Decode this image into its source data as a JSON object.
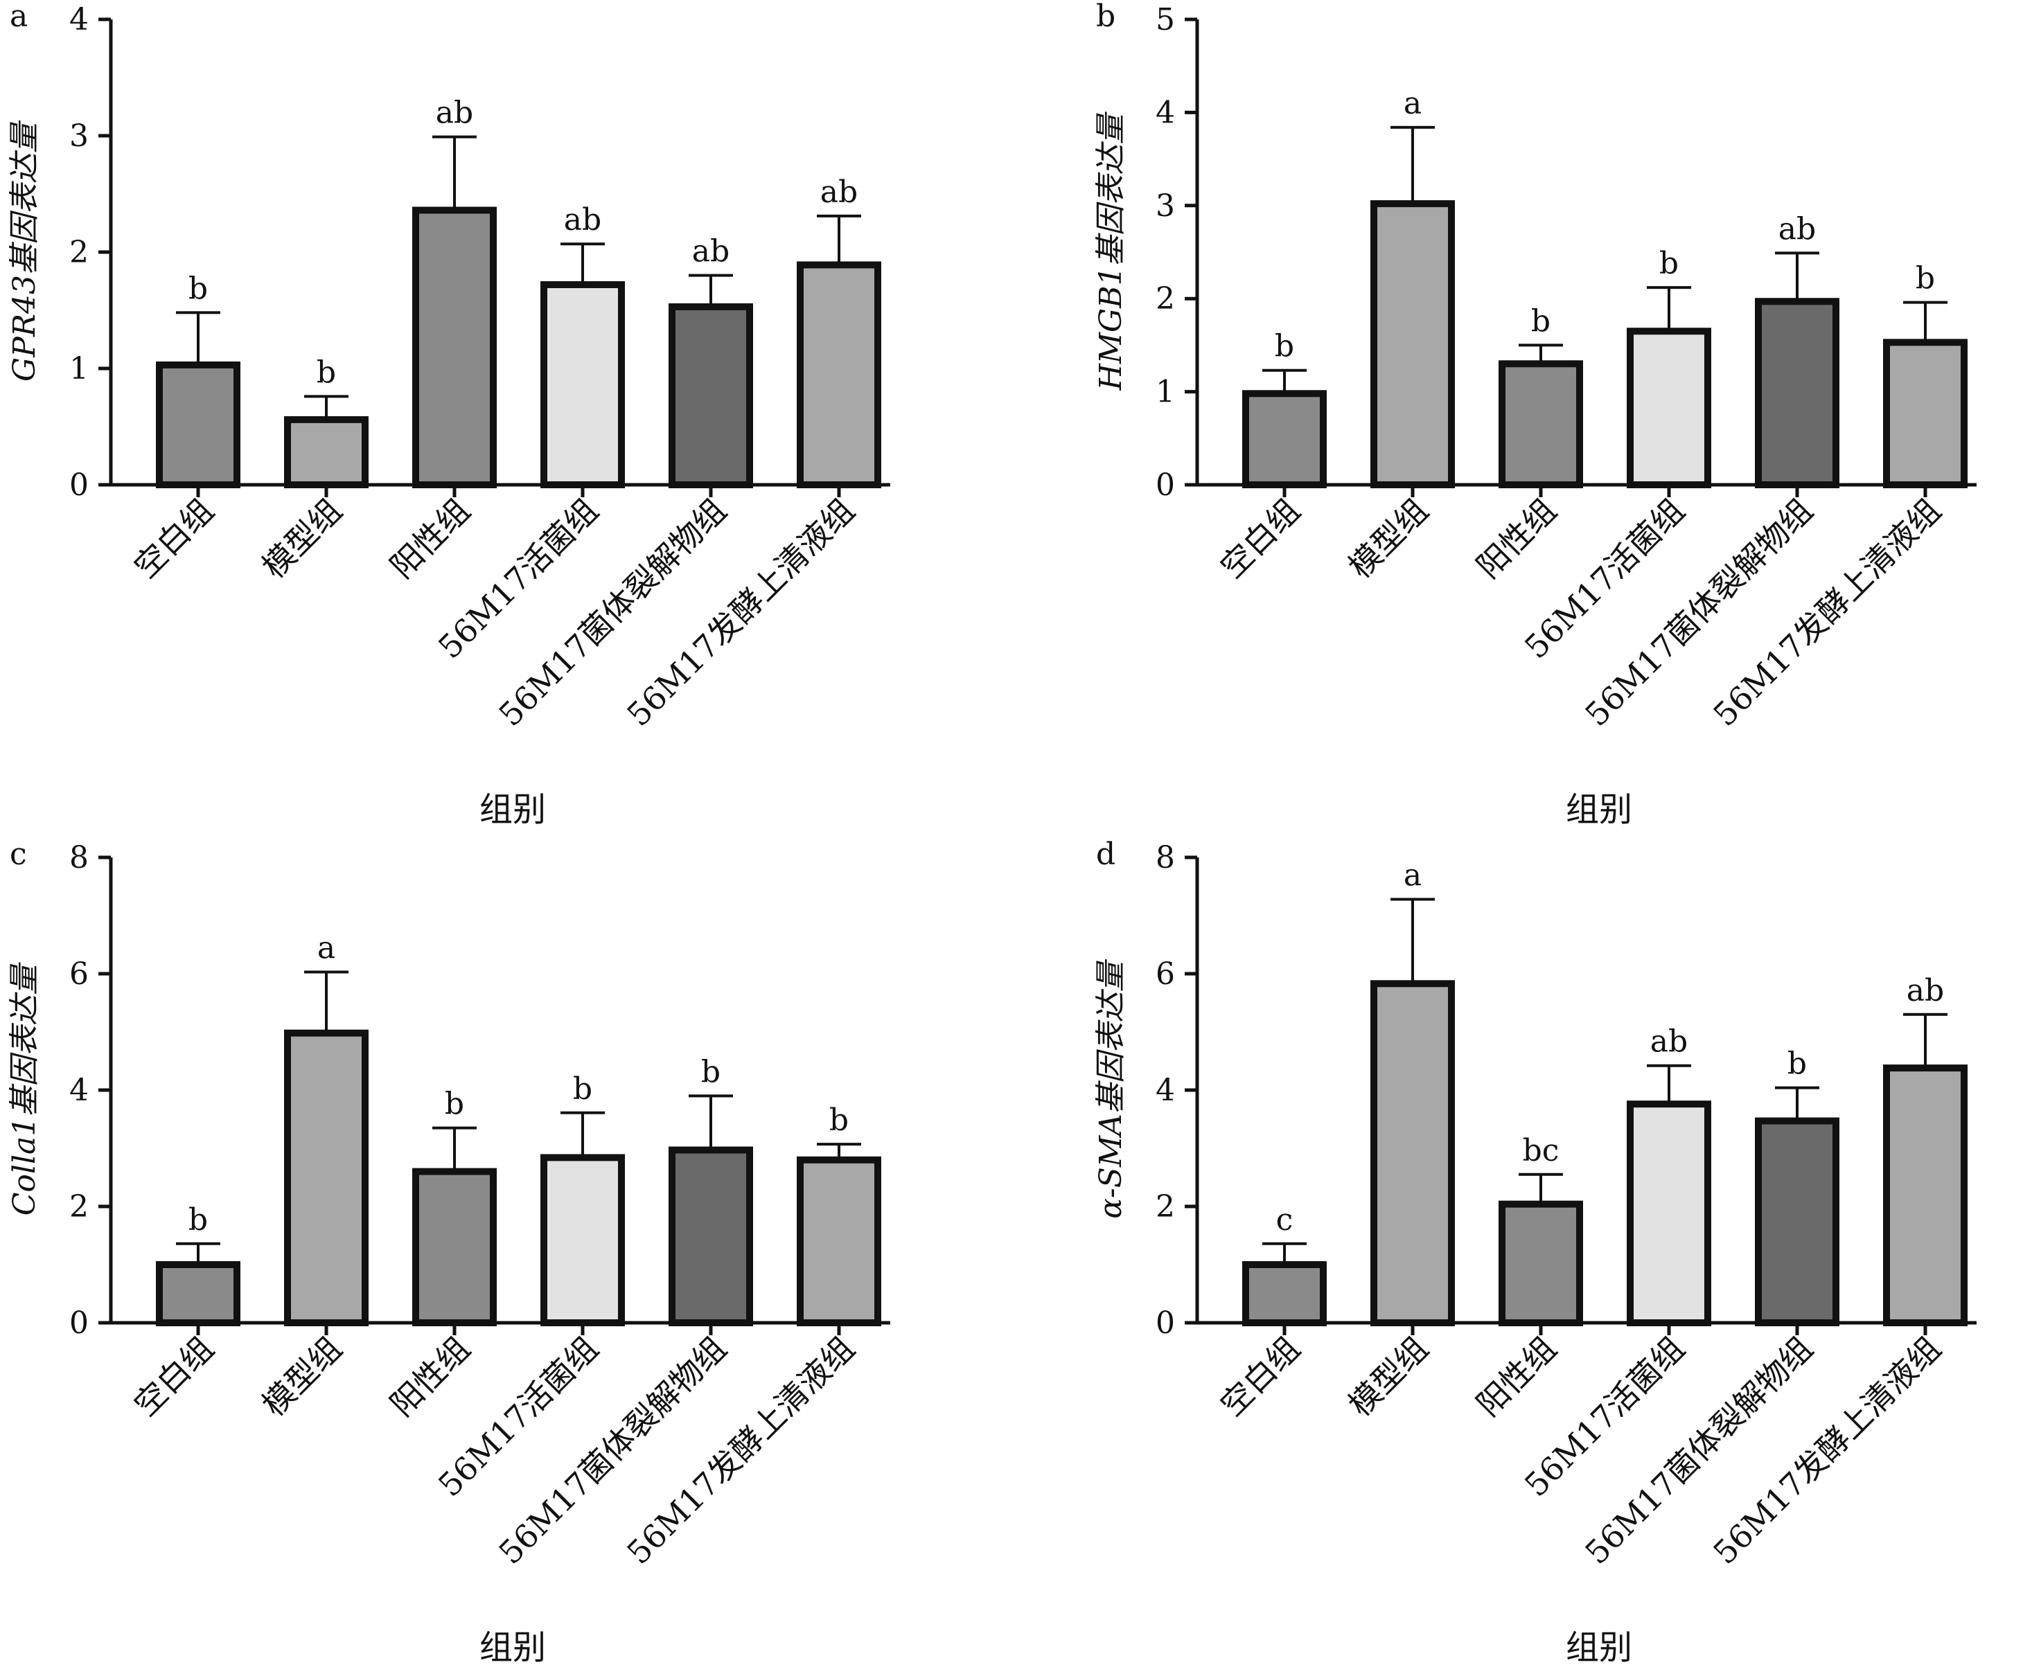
{
  "chart_data": [
    {
      "panel": "a",
      "type": "bar",
      "ylabel": "GPR43基因表达量",
      "xlabel": "组别",
      "ylim": [
        0,
        4
      ],
      "yticks": [
        0,
        1,
        2,
        3,
        4
      ],
      "categories": [
        "空白组",
        "模型组",
        "阳性组",
        "56M17活菌组",
        "56M17菌体裂解物组",
        "56M17发酵上清液组"
      ],
      "values": [
        1.03,
        0.56,
        2.36,
        1.72,
        1.53,
        1.89
      ],
      "errors": [
        0.45,
        0.2,
        0.63,
        0.35,
        0.27,
        0.42
      ],
      "labels": [
        "b",
        "b",
        "ab",
        "ab",
        "ab",
        "ab"
      ],
      "colors": [
        "#8a8a8a",
        "#a8a8a8",
        "#8a8a8a",
        "#e2e2e2",
        "#6a6a6a",
        "#a8a8a8"
      ],
      "grid": false
    },
    {
      "panel": "b",
      "type": "bar",
      "ylabel": "HMGB1基因表达量",
      "xlabel": "组别",
      "ylim": [
        0,
        5
      ],
      "yticks": [
        0,
        1,
        2,
        3,
        4,
        5
      ],
      "categories": [
        "空白组",
        "模型组",
        "阳性组",
        "56M17活菌组",
        "56M17菌体裂解物组",
        "56M17发酵上清液组"
      ],
      "values": [
        0.98,
        3.02,
        1.3,
        1.65,
        1.97,
        1.53
      ],
      "errors": [
        0.25,
        0.82,
        0.2,
        0.47,
        0.52,
        0.43
      ],
      "labels": [
        "b",
        "a",
        "b",
        "b",
        "ab",
        "b"
      ],
      "colors": [
        "#8a8a8a",
        "#a8a8a8",
        "#8a8a8a",
        "#e2e2e2",
        "#6a6a6a",
        "#a8a8a8"
      ],
      "grid": false
    },
    {
      "panel": "c",
      "type": "bar",
      "ylabel": "Colla1基因表达量",
      "xlabel": "组别",
      "ylim": [
        0,
        8
      ],
      "yticks": [
        0,
        2,
        4,
        6,
        8
      ],
      "categories": [
        "空白组",
        "模型组",
        "阳性组",
        "56M17活菌组",
        "56M17菌体裂解物组",
        "56M17发酵上清液组"
      ],
      "values": [
        1.0,
        4.98,
        2.6,
        2.84,
        2.97,
        2.8
      ],
      "errors": [
        0.36,
        1.05,
        0.75,
        0.77,
        0.93,
        0.27
      ],
      "labels": [
        "b",
        "a",
        "b",
        "b",
        "b",
        "b"
      ],
      "colors": [
        "#8a8a8a",
        "#a8a8a8",
        "#8a8a8a",
        "#e2e2e2",
        "#6a6a6a",
        "#a8a8a8"
      ],
      "grid": false
    },
    {
      "panel": "d",
      "type": "bar",
      "ylabel": "α-SMA基因表达量",
      "xlabel": "组别",
      "ylim": [
        0,
        8
      ],
      "yticks": [
        0,
        2,
        4,
        6,
        8
      ],
      "categories": [
        "空白组",
        "模型组",
        "阳性组",
        "56M17活菌组",
        "56M17菌体裂解物组",
        "56M17发酵上清液组"
      ],
      "values": [
        1.0,
        5.83,
        2.04,
        3.76,
        3.47,
        4.38
      ],
      "errors": [
        0.36,
        1.45,
        0.51,
        0.66,
        0.57,
        0.92
      ],
      "labels": [
        "c",
        "a",
        "bc",
        "ab",
        "b",
        "ab"
      ],
      "colors": [
        "#8a8a8a",
        "#a8a8a8",
        "#8a8a8a",
        "#e2e2e2",
        "#6a6a6a",
        "#a8a8a8"
      ],
      "grid": false
    }
  ]
}
